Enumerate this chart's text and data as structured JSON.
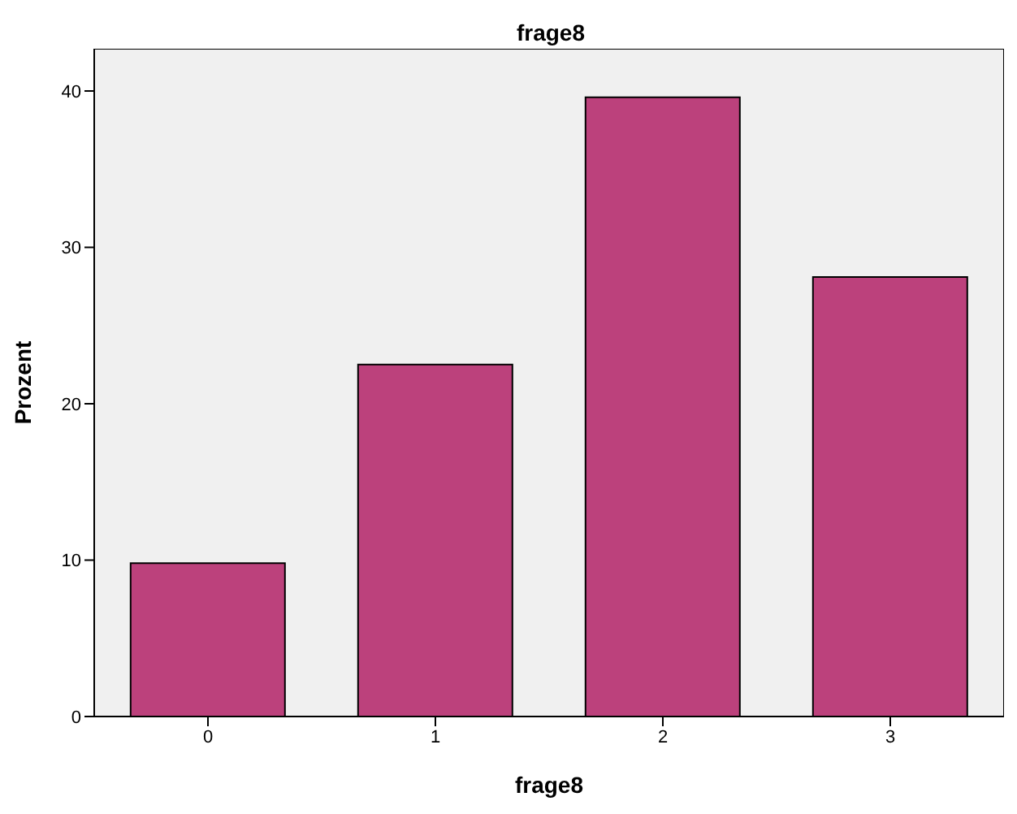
{
  "chart_data": {
    "type": "bar",
    "title": "frage8",
    "xlabel": "frage8",
    "ylabel": "Prozent",
    "categories": [
      "0",
      "1",
      "2",
      "3"
    ],
    "values": [
      9.8,
      22.5,
      39.6,
      28.1
    ],
    "color": "#bc417c",
    "ylim": [
      0,
      42.7
    ],
    "yticks": [
      0,
      10,
      20,
      30,
      40
    ],
    "grid": false,
    "legend": false
  }
}
